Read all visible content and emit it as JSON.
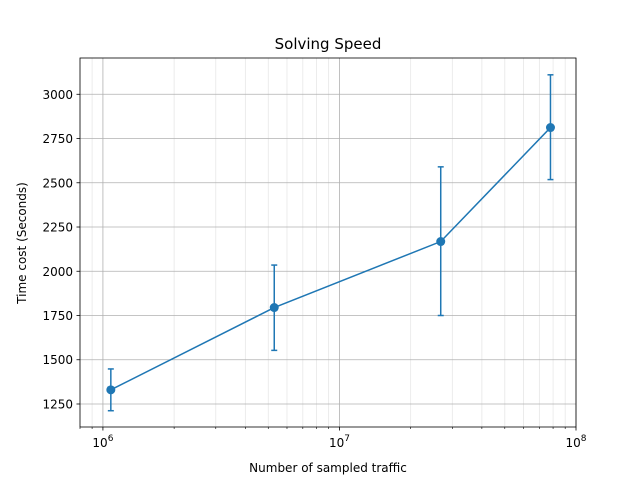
{
  "chart_data": {
    "type": "line",
    "title": "Solving Speed",
    "xlabel": "Number of sampled traffic",
    "ylabel": "Time cost (Seconds)",
    "x_scale": "log",
    "xlim": [
      800000,
      100000000
    ],
    "ylim": [
      1120,
      3205
    ],
    "grid": "on (major and minor x, major y)",
    "x_tick_labels": [
      {
        "value": 1000000,
        "base": "10",
        "exp": "6"
      },
      {
        "value": 10000000,
        "base": "10",
        "exp": "7"
      },
      {
        "value": 100000000,
        "base": "10",
        "exp": "8"
      }
    ],
    "y_ticks": [
      1250,
      1500,
      1750,
      2000,
      2250,
      2500,
      2750,
      3000
    ],
    "series": [
      {
        "color": "#1f77b4",
        "x": [
          1080000,
          5300000,
          26800000,
          78000000
        ],
        "y": [
          1330,
          1795,
          2168,
          2812
        ],
        "err_low": [
          1212,
          1553,
          1750,
          2518
        ],
        "err_high": [
          1448,
          2035,
          2590,
          3110
        ]
      }
    ]
  }
}
